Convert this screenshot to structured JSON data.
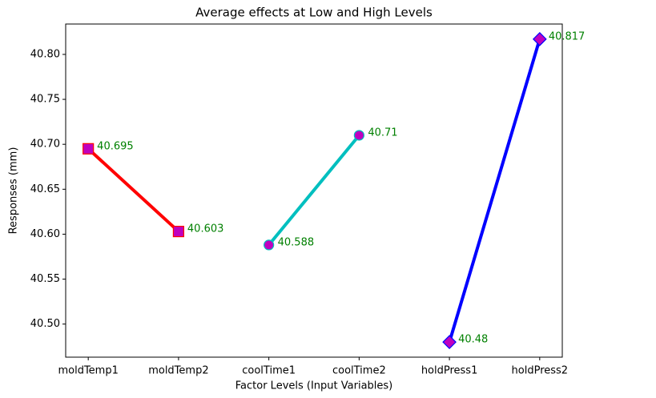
{
  "chart_data": {
    "type": "line",
    "title": "Average effects at Low and High Levels",
    "xlabel": "Factor Levels (Input Variables)",
    "ylabel": "Responses (mm)",
    "categories": [
      "moldTemp1",
      "moldTemp2",
      "coolTime1",
      "coolTime2",
      "holdPress1",
      "holdPress2"
    ],
    "series": [
      {
        "color": "#ff0000",
        "marker": "s",
        "marker_color": "#bf00bf",
        "values": [
          40.695,
          40.603,
          null,
          null,
          null,
          null
        ]
      },
      {
        "color": "#00bfbf",
        "marker": "o",
        "marker_color": "#bf00bf",
        "values": [
          null,
          null,
          40.588,
          40.71,
          null,
          null
        ]
      },
      {
        "color": "#0000ff",
        "marker": "D",
        "marker_color": "#bf00bf",
        "values": [
          null,
          null,
          null,
          null,
          40.48,
          40.817
        ]
      }
    ],
    "label_color": "#008000",
    "ylim": [
      40.4632,
      40.8338
    ],
    "yticks": [
      {
        "value": 40.5,
        "label": "40.50"
      },
      40.55,
      {
        "value": 40.6,
        "label": "40.60"
      },
      40.65,
      {
        "value": 40.7,
        "label": "40.70"
      },
      40.75,
      {
        "value": 40.8,
        "label": "40.80"
      }
    ]
  }
}
